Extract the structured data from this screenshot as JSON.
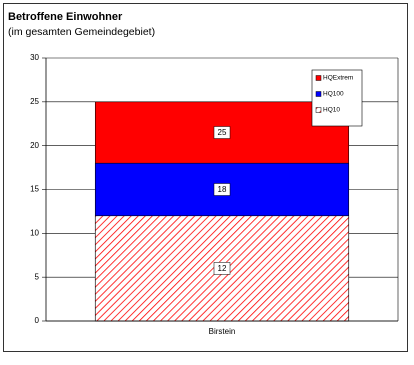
{
  "chart_data": {
    "type": "bar",
    "title": "Betroffene Einwohner",
    "subtitle": "(im gesamten Gemeindegebiet)",
    "categories": [
      "Birstein"
    ],
    "series": [
      {
        "name": "HQExtrem",
        "color": "#ff0000",
        "values": [
          25
        ]
      },
      {
        "name": "HQ100",
        "color": "#0000ff",
        "values": [
          18
        ]
      },
      {
        "name": "HQ10",
        "color": "#ff0000",
        "hatch": true,
        "values": [
          12
        ]
      }
    ],
    "ylim": [
      0,
      30
    ],
    "yticks": [
      0,
      5,
      10,
      15,
      20,
      25,
      30
    ],
    "grid": true,
    "legend": "top-right"
  }
}
